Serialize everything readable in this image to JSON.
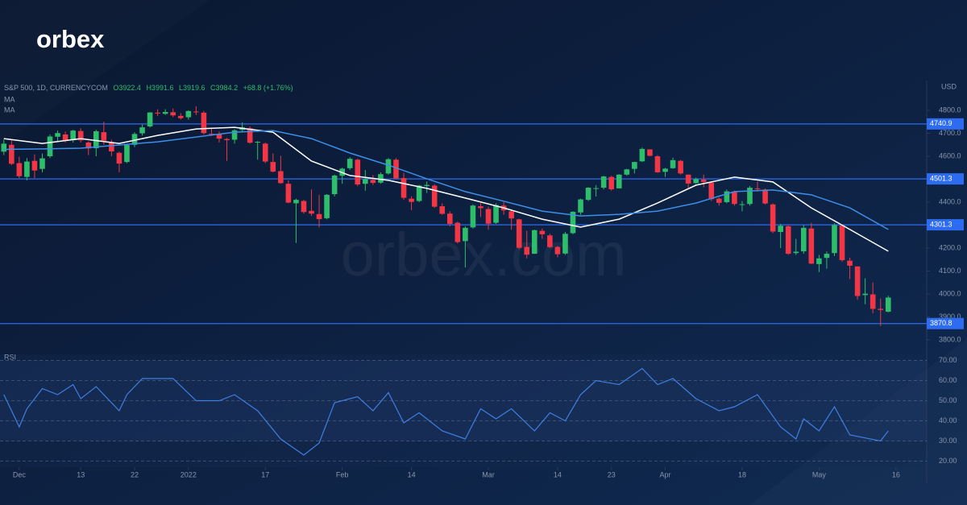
{
  "logo": "orbex",
  "watermark": "orbex.com",
  "chart_data": [
    {
      "type": "candlestick",
      "title": "S&P 500, 1D, CURRENCYCOM",
      "ohlc_text": [
        "O3922.4",
        "H3991.6",
        "L3919.6",
        "C3984.2",
        "+68.8 (+1.76%)"
      ],
      "axis_label": "USD",
      "up_color": "#2ebd6b",
      "down_color": "#f23645",
      "open": [
        4620,
        4650,
        4570,
        4510,
        4580,
        4545,
        4600,
        4685,
        4695,
        4670,
        4710,
        4660,
        4635,
        4705,
        4660,
        4615,
        4575,
        4650,
        4700,
        4730,
        4790,
        4785,
        4792,
        4776,
        4770,
        4795,
        4790,
        4698,
        4695,
        4675,
        4672,
        4715,
        4722,
        4660,
        4655,
        4575,
        4535,
        4480,
        4395,
        4405,
        4362,
        4348,
        4330,
        4435,
        4515,
        4548,
        4585,
        4480,
        4497,
        4485,
        4525,
        4585,
        4505,
        4415,
        4405,
        4470,
        4472,
        4382,
        4350,
        4310,
        4230,
        4290,
        4382,
        4370,
        4310,
        4385,
        4360,
        4325,
        4205,
        4175,
        4275,
        4255,
        4205,
        4176,
        4265,
        4355,
        4410,
        4460,
        4463,
        4510,
        4460,
        4520,
        4545,
        4578,
        4630,
        4600,
        4532,
        4548,
        4580,
        4520,
        4483,
        4498,
        4485,
        4415,
        4400,
        4445,
        4390,
        4392,
        4460,
        4455,
        4390,
        4270,
        4295,
        4178,
        4186,
        4285,
        4130,
        4157,
        4178,
        4298,
        4145,
        4120,
        3995,
        3998,
        3935,
        3922.4
      ],
      "high": [
        4672,
        4672,
        4598,
        4592,
        4608,
        4612,
        4695,
        4712,
        4708,
        4715,
        4722,
        4665,
        4715,
        4750,
        4672,
        4620,
        4655,
        4705,
        4738,
        4792,
        4805,
        4805,
        4808,
        4788,
        4800,
        4818,
        4798,
        4725,
        4708,
        4680,
        4718,
        4748,
        4730,
        4666,
        4660,
        4612,
        4602,
        4495,
        4415,
        4410,
        4455,
        4432,
        4435,
        4520,
        4550,
        4596,
        4590,
        4540,
        4518,
        4530,
        4592,
        4592,
        4528,
        4426,
        4475,
        4490,
        4478,
        4395,
        4360,
        4315,
        4295,
        4390,
        4396,
        4380,
        4395,
        4400,
        4365,
        4328,
        4275,
        4280,
        4285,
        4262,
        4210,
        4270,
        4360,
        4415,
        4465,
        4474,
        4515,
        4515,
        4522,
        4545,
        4576,
        4638,
        4626,
        4605,
        4549,
        4594,
        4584,
        4520,
        4507,
        4520,
        4486,
        4420,
        4455,
        4450,
        4405,
        4470,
        4490,
        4460,
        4395,
        4305,
        4300,
        4240,
        4300,
        4310,
        4170,
        4185,
        4308,
        4302,
        4158,
        4118,
        4068,
        4050,
        3980,
        3991.6
      ],
      "low": [
        4605,
        4562,
        4505,
        4495,
        4505,
        4530,
        4592,
        4665,
        4660,
        4660,
        4660,
        4605,
        4600,
        4650,
        4600,
        4530,
        4570,
        4640,
        4690,
        4725,
        4775,
        4780,
        4770,
        4760,
        4760,
        4780,
        4695,
        4688,
        4660,
        4580,
        4655,
        4708,
        4655,
        4585,
        4570,
        4530,
        4480,
        4395,
        4222,
        4350,
        4340,
        4290,
        4325,
        4425,
        4480,
        4540,
        4470,
        4450,
        4475,
        4480,
        4520,
        4500,
        4410,
        4365,
        4400,
        4440,
        4375,
        4345,
        4295,
        4220,
        4115,
        4285,
        4335,
        4280,
        4305,
        4345,
        4280,
        4195,
        4155,
        4175,
        4240,
        4200,
        4160,
        4170,
        4260,
        4345,
        4405,
        4425,
        4455,
        4450,
        4460,
        4515,
        4525,
        4575,
        4600,
        4528,
        4510,
        4545,
        4520,
        4460,
        4480,
        4465,
        4405,
        4385,
        4395,
        4385,
        4360,
        4385,
        4445,
        4390,
        4265,
        4200,
        4170,
        4170,
        4175,
        4130,
        4095,
        4110,
        4165,
        4140,
        4065,
        3975,
        3955,
        3915,
        3860,
        3919.6
      ],
      "close": [
        4655,
        4567,
        4513,
        4577,
        4538,
        4591,
        4686,
        4701,
        4668,
        4712,
        4669,
        4634,
        4709,
        4668,
        4621,
        4568,
        4649,
        4697,
        4726,
        4791,
        4786,
        4793,
        4778,
        4766,
        4797,
        4794,
        4701,
        4696,
        4677,
        4670,
        4713,
        4726,
        4659,
        4663,
        4577,
        4533,
        4483,
        4398,
        4410,
        4357,
        4350,
        4326,
        4432,
        4516,
        4546,
        4589,
        4477,
        4500,
        4484,
        4522,
        4587,
        4504,
        4419,
        4401,
        4472,
        4475,
        4380,
        4349,
        4305,
        4226,
        4288,
        4385,
        4374,
        4306,
        4387,
        4364,
        4329,
        4201,
        4171,
        4278,
        4260,
        4204,
        4173,
        4262,
        4358,
        4412,
        4463,
        4461,
        4512,
        4456,
        4520,
        4543,
        4575,
        4632,
        4602,
        4530,
        4546,
        4583,
        4525,
        4481,
        4500,
        4488,
        4413,
        4397,
        4447,
        4392,
        4391,
        4463,
        4459,
        4394,
        4272,
        4297,
        4175,
        4184,
        4288,
        4132,
        4155,
        4175,
        4300,
        4147,
        4123,
        3991,
        4001,
        3935,
        3930,
        3984.2
      ],
      "series": [
        {
          "name": "MA",
          "color": "#ffffff",
          "x": [
            0,
            5,
            10,
            15,
            20,
            25,
            30,
            35,
            40,
            45,
            50,
            55,
            60,
            65,
            70,
            75,
            80,
            85,
            90,
            95,
            100,
            105,
            110,
            115
          ],
          "values": [
            4677,
            4656,
            4677,
            4656,
            4691,
            4719,
            4726,
            4705,
            4579,
            4516,
            4495,
            4460,
            4418,
            4375,
            4326,
            4291,
            4326,
            4396,
            4474,
            4509,
            4488,
            4375,
            4281,
            4186
          ]
        },
        {
          "name": "MA",
          "color": "#3d8ee8",
          "x": [
            0,
            5,
            10,
            15,
            20,
            25,
            30,
            35,
            40,
            45,
            50,
            55,
            60,
            65,
            70,
            75,
            80,
            85,
            90,
            95,
            100,
            105,
            110,
            115
          ],
          "values": [
            4630,
            4632,
            4635,
            4649,
            4663,
            4684,
            4705,
            4712,
            4677,
            4614,
            4561,
            4502,
            4446,
            4404,
            4361,
            4340,
            4347,
            4361,
            4396,
            4446,
            4453,
            4432,
            4375,
            4281
          ]
        }
      ],
      "levels": [
        4740.9,
        4501.3,
        4301.3,
        3870.8
      ],
      "level_color": "#2d6cf0",
      "xlim": [
        -0.5,
        120
      ],
      "xticks": [
        {
          "value": 2,
          "label": "Dec"
        },
        {
          "value": 10,
          "label": "13"
        },
        {
          "value": 17,
          "label": "22"
        },
        {
          "value": 24,
          "label": "2022"
        },
        {
          "value": 34,
          "label": "17"
        },
        {
          "value": 44,
          "label": "Feb"
        },
        {
          "value": 53,
          "label": "14"
        },
        {
          "value": 63,
          "label": "Mar"
        },
        {
          "value": 72,
          "label": "14"
        },
        {
          "value": 79,
          "label": "23"
        },
        {
          "value": 86,
          "label": "Apr"
        },
        {
          "value": 96,
          "label": "18"
        },
        {
          "value": 106,
          "label": "May"
        },
        {
          "value": 116,
          "label": "16"
        }
      ],
      "ylim": [
        3754,
        4930
      ],
      "yticks": [
        {
          "value": 3800,
          "label": "3800.0"
        },
        {
          "value": 3900,
          "label": "3900.0"
        },
        {
          "value": 4000,
          "label": "4000.0"
        },
        {
          "value": 4100,
          "label": "4100.0"
        },
        {
          "value": 4200,
          "label": "4200.0"
        },
        {
          "value": 4300,
          "label": "4300.0"
        },
        {
          "value": 4400,
          "label": "4400.0"
        },
        {
          "value": 4500,
          "label": "4500.0"
        },
        {
          "value": 4600,
          "label": "4600.0"
        },
        {
          "value": 4700,
          "label": "4700.0"
        },
        {
          "value": 4800,
          "label": "4800.0"
        }
      ]
    },
    {
      "type": "line",
      "title": "RSI",
      "color": "#3f7fe0",
      "x": [
        0,
        2,
        3,
        5,
        7,
        9,
        10,
        12,
        15,
        16,
        18,
        22,
        25,
        28,
        30,
        33,
        36,
        39,
        41,
        43,
        46,
        48,
        50,
        52,
        54,
        57,
        60,
        62,
        64,
        66,
        69,
        71,
        73,
        75,
        77,
        80,
        83,
        85,
        87,
        90,
        93,
        95,
        98,
        101,
        103,
        104,
        106,
        108,
        110,
        114,
        115
      ],
      "values": [
        53,
        37,
        46,
        56,
        53,
        58,
        51,
        57,
        45,
        53,
        61,
        61,
        50,
        50,
        53,
        45,
        31,
        23,
        29,
        49,
        52,
        45,
        54,
        39,
        44,
        35,
        31,
        46,
        41,
        46,
        35,
        44,
        40,
        53,
        60,
        58,
        66,
        58,
        61,
        51,
        45,
        47,
        53,
        37,
        31,
        41,
        35,
        47,
        33,
        30,
        35
      ],
      "band": [
        30,
        70
      ],
      "grid": true,
      "xlim": [
        -0.5,
        120
      ],
      "ylim": [
        17,
        73
      ],
      "yticks": [
        {
          "value": 20,
          "label": "20.00"
        },
        {
          "value": 30,
          "label": "30.00"
        },
        {
          "value": 40,
          "label": "40.00"
        },
        {
          "value": 50,
          "label": "50.00"
        },
        {
          "value": 60,
          "label": "60.00"
        },
        {
          "value": 70,
          "label": "70.00"
        }
      ]
    }
  ]
}
